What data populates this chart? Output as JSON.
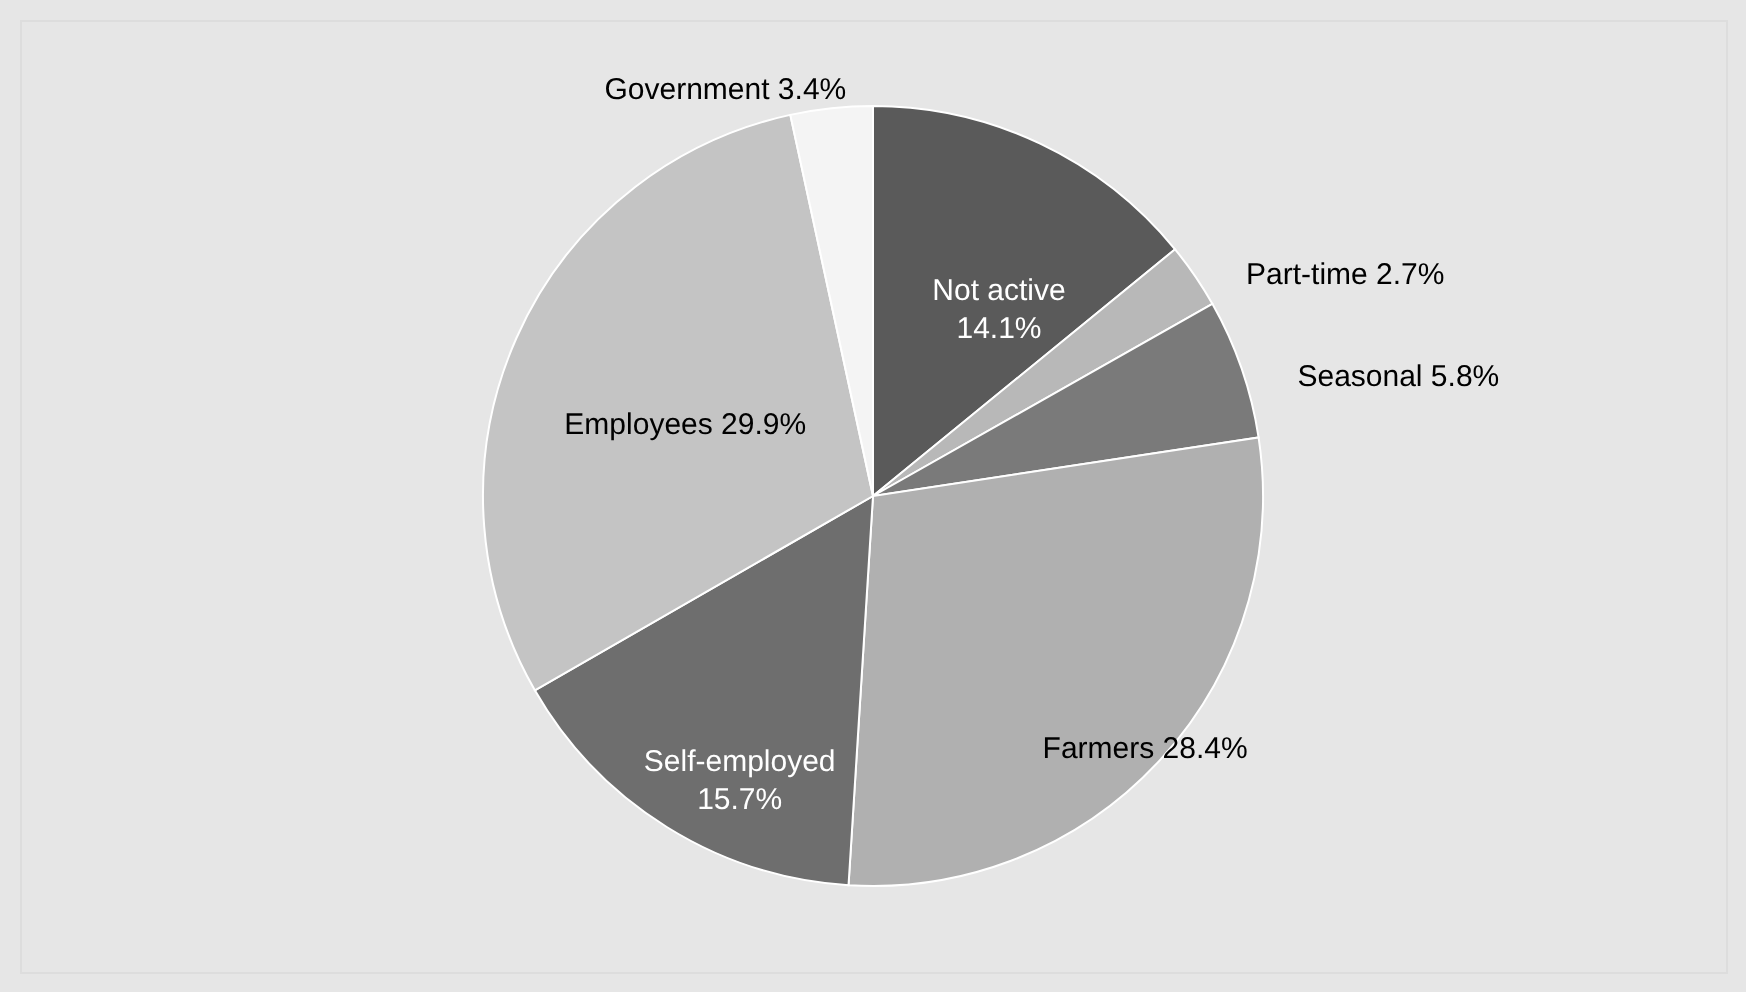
{
  "chart_data": {
    "type": "pie",
    "categories": [
      "Not active",
      "Part-time",
      "Seasonal",
      "Farmers",
      "Self-employed",
      "Employees",
      "Government"
    ],
    "values": [
      14.1,
      2.7,
      5.8,
      28.4,
      15.7,
      29.9,
      3.4
    ],
    "value_labels": [
      "14.1%",
      "2.7%",
      "5.8%",
      "28.4%",
      "15.7%",
      "29.9%",
      "3.4%"
    ],
    "colors": [
      "#5a5a5a",
      "#b8b8b8",
      "#7a7a7a",
      "#b0b0b0",
      "#6e6e6e",
      "#c4c4c4",
      "#f4f4f4"
    ]
  }
}
